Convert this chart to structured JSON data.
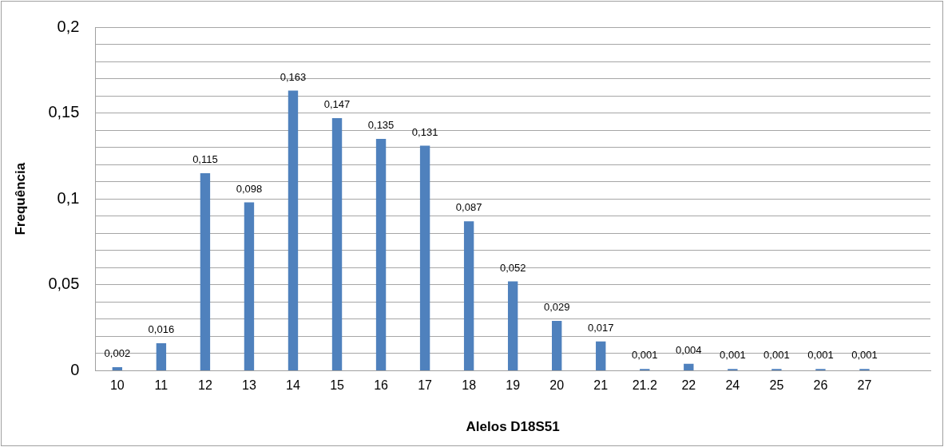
{
  "chart_data": {
    "type": "bar",
    "xlabel": "Alelos D18S51",
    "ylabel": "Frequência",
    "categories": [
      "10",
      "11",
      "12",
      "13",
      "14",
      "15",
      "16",
      "17",
      "18",
      "19",
      "20",
      "21",
      "21.2",
      "22",
      "24",
      "25",
      "26",
      "27",
      null
    ],
    "values": [
      0.002,
      0.016,
      0.115,
      0.098,
      0.163,
      0.147,
      0.135,
      0.131,
      0.087,
      0.052,
      0.029,
      0.017,
      0.001,
      0.004,
      0.001,
      0.001,
      0.001,
      0.001,
      null
    ],
    "value_labels": [
      "0,002",
      "0,016",
      "0,115",
      "0,098",
      "0,163",
      "0,147",
      "0,135",
      "0,131",
      "0,087",
      "0,052",
      "0,029",
      "0,017",
      "0,001",
      "0,004",
      "0,001",
      "0,001",
      "0,001",
      "0,001",
      null
    ],
    "color": "#4f81bd",
    "ylim": [
      0,
      0.2
    ],
    "yticks": [
      {
        "value": 0,
        "label": "0"
      },
      {
        "value": 0.01,
        "label": null
      },
      {
        "value": 0.02,
        "label": null
      },
      {
        "value": 0.03,
        "label": null
      },
      {
        "value": 0.04,
        "label": null
      },
      {
        "value": 0.05,
        "label": "0,05"
      },
      {
        "value": 0.06,
        "label": null
      },
      {
        "value": 0.07,
        "label": null
      },
      {
        "value": 0.08,
        "label": null
      },
      {
        "value": 0.09,
        "label": null
      },
      {
        "value": 0.1,
        "label": "0,1"
      },
      {
        "value": 0.11,
        "label": null
      },
      {
        "value": 0.12,
        "label": null
      },
      {
        "value": 0.13,
        "label": null
      },
      {
        "value": 0.14,
        "label": null
      },
      {
        "value": 0.15,
        "label": "0,15"
      },
      {
        "value": 0.16,
        "label": null
      },
      {
        "value": 0.17,
        "label": null
      },
      {
        "value": 0.18,
        "label": null
      },
      {
        "value": 0.19,
        "label": null
      },
      {
        "value": 0.2,
        "label": "0,2"
      }
    ],
    "grid": "y",
    "legend": false
  }
}
